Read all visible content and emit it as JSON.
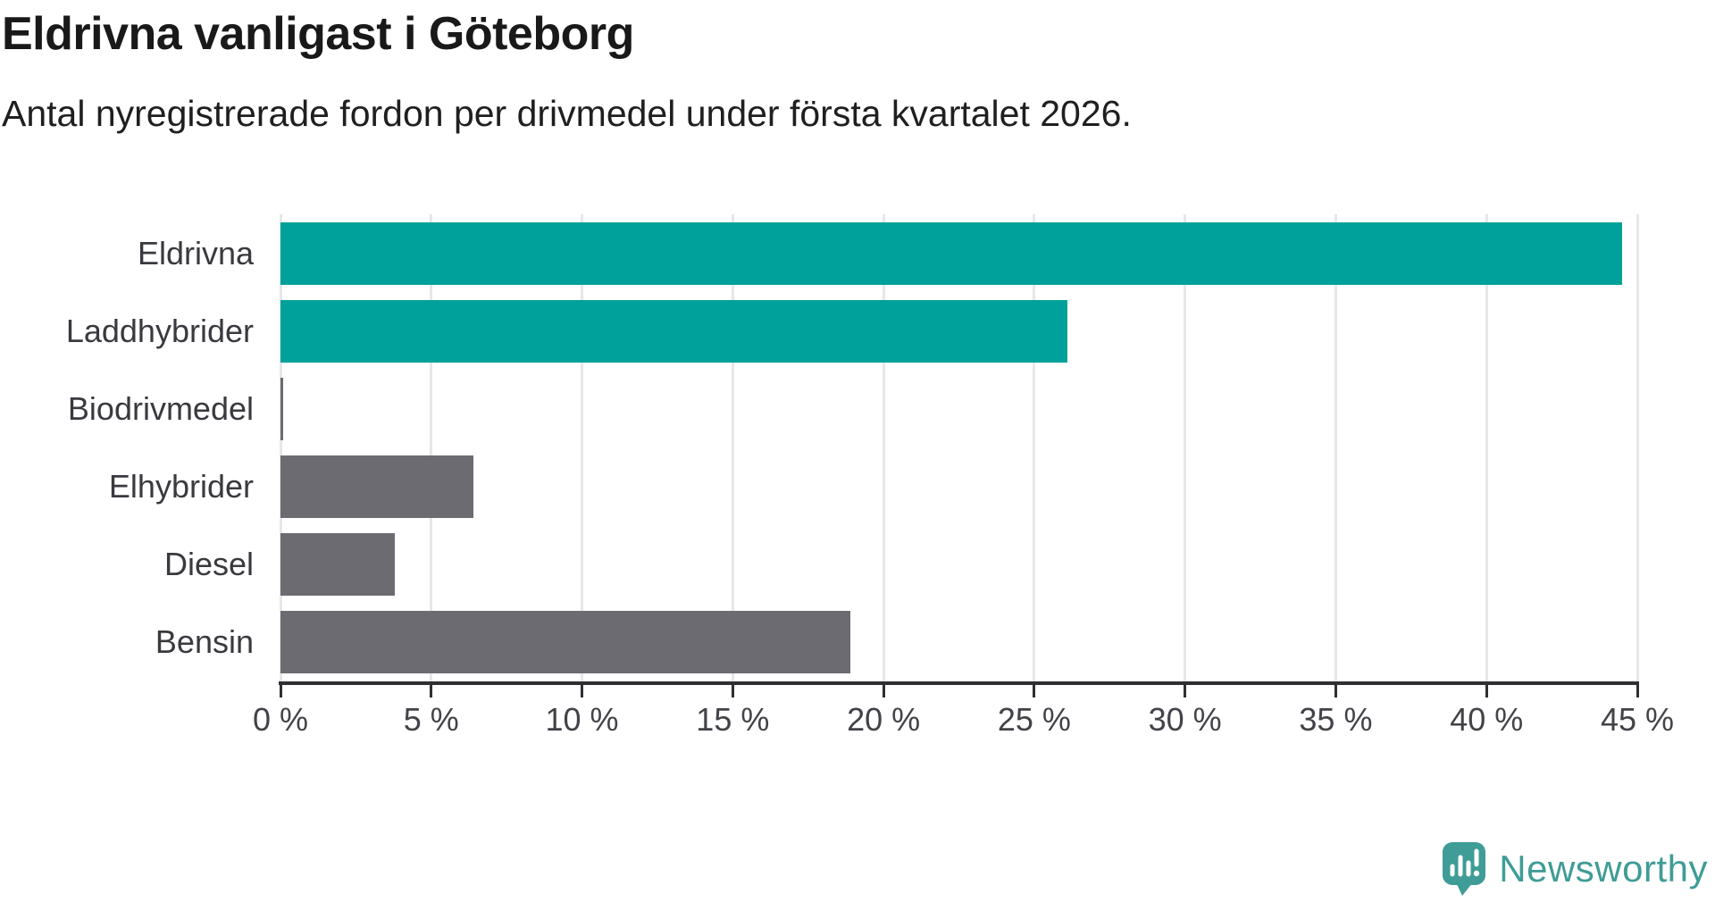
{
  "header": {
    "title": "Eldrivna vanligast i Göteborg",
    "subtitle": "Antal nyregistrerade fordon per drivmedel under första kvartalet 2026."
  },
  "chart_data": {
    "type": "bar",
    "orientation": "horizontal",
    "title": "Eldrivna vanligast i Göteborg",
    "subtitle": "Antal nyregistrerade fordon per drivmedel under första kvartalet 2026.",
    "categories": [
      "Eldrivna",
      "Laddhybrider",
      "Biodrivmedel",
      "Elhybrider",
      "Diesel",
      "Bensin"
    ],
    "values": [
      44.5,
      26.1,
      0.1,
      6.4,
      3.8,
      18.9
    ],
    "unit": "%",
    "xlim": [
      0,
      45
    ],
    "ticks": [
      0,
      5,
      10,
      15,
      20,
      25,
      30,
      35,
      40,
      45
    ],
    "tick_labels": [
      "0 %",
      "5 %",
      "10 %",
      "15 %",
      "20 %",
      "25 %",
      "30 %",
      "35 %",
      "40 %",
      "45 %"
    ],
    "grid": true,
    "legend": "none",
    "bar_colors": [
      "#00a19a",
      "#00a19a",
      "#6c6b72",
      "#6c6b72",
      "#6c6b72",
      "#6c6b72"
    ],
    "colors": {
      "highlight": "#00a19a",
      "default_bar": "#6c6b72",
      "gridline": "#e7e7e7",
      "axis": "#2f2e33"
    }
  },
  "branding": {
    "logo_text": "Newsworthy",
    "logo_color": "#3f9c96",
    "logo_icon": "newsworthy-bubble-chart-icon"
  }
}
